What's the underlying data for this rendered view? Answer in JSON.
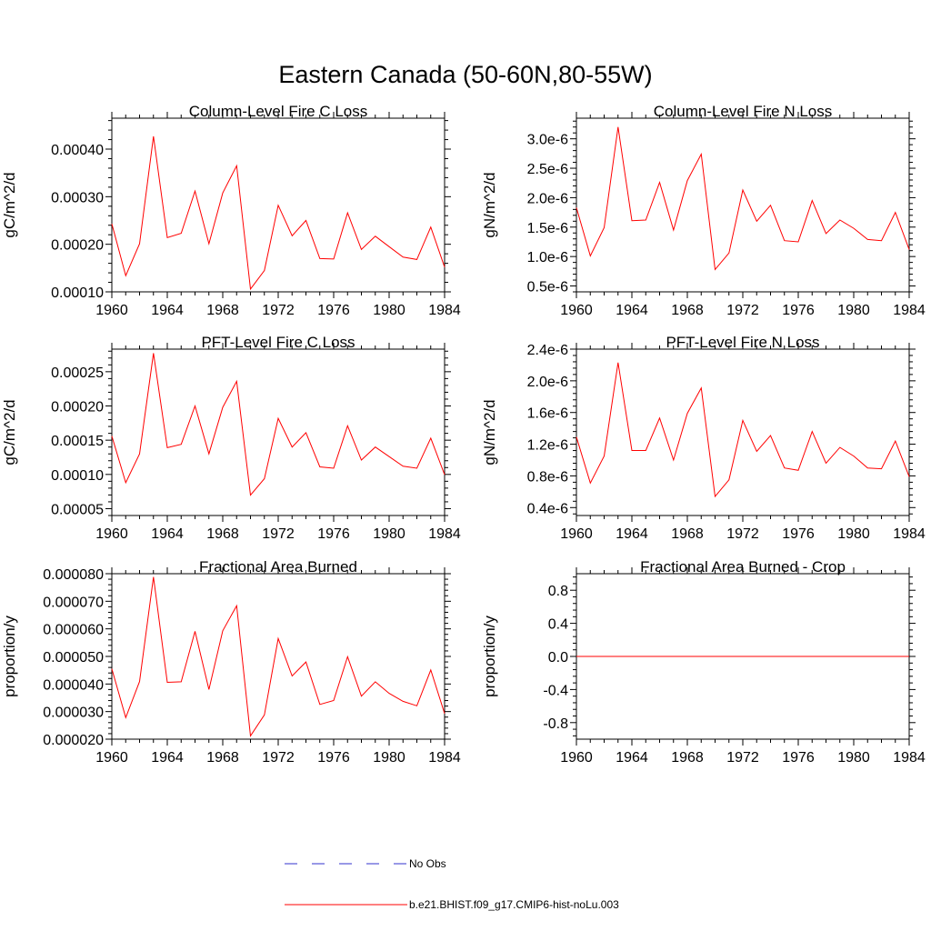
{
  "figure": {
    "title": "Eastern Canada (50-60N,80-55W)"
  },
  "legend": {
    "entries": [
      {
        "label": "No Obs",
        "color": "#3333cc",
        "style": "dashed"
      },
      {
        "label": "b.e21.BHIST.f09_g17.CMIP6-hist-noLu.003",
        "color": "#ff0000",
        "style": "solid"
      }
    ]
  },
  "chart_data": [
    {
      "type": "line",
      "title": "Column-Level Fire C Loss",
      "ylabel": "gC/m^2/d",
      "xlim": [
        1960,
        1984
      ],
      "ylim": [
        0.0001,
        0.000465
      ],
      "xticks": [
        "1960",
        "1964",
        "1968",
        "1972",
        "1976",
        "1980",
        "1984"
      ],
      "yticks": [
        "0.00010",
        "0.00020",
        "0.00030",
        "0.00040"
      ],
      "ytick_values": [
        0.0001,
        0.0002,
        0.0003,
        0.0004
      ],
      "x": [
        1960,
        1961,
        1962,
        1963,
        1964,
        1965,
        1966,
        1967,
        1968,
        1969,
        1970,
        1971,
        1972,
        1973,
        1974,
        1975,
        1976,
        1977,
        1978,
        1979,
        1980,
        1981,
        1982,
        1983,
        1984
      ],
      "series": [
        {
          "color": "#ff0000",
          "values": [
            0.000243,
            0.000134,
            0.000201,
            0.000427,
            0.000214,
            0.000223,
            0.000312,
            0.000201,
            0.000308,
            0.000365,
            0.000106,
            0.000145,
            0.000282,
            0.000218,
            0.00025,
            0.00017,
            0.000169,
            0.000266,
            0.000189,
            0.000217,
            0.000195,
            0.000173,
            0.000168,
            0.000236,
            0.000152
          ]
        }
      ]
    },
    {
      "type": "line",
      "title": "Column-Level Fire N Loss",
      "ylabel": "gN/m^2/d",
      "xlim": [
        1960,
        1984
      ],
      "ylim": [
        4e-07,
        3.35e-06
      ],
      "xticks": [
        "1960",
        "1964",
        "1968",
        "1972",
        "1976",
        "1980",
        "1984"
      ],
      "yticks": [
        "0.5e-6",
        "1.0e-6",
        "1.5e-6",
        "2.0e-6",
        "2.5e-6",
        "3.0e-6"
      ],
      "ytick_values": [
        5e-07,
        1e-06,
        1.5e-06,
        2e-06,
        2.5e-06,
        3e-06
      ],
      "x": [
        1960,
        1961,
        1962,
        1963,
        1964,
        1965,
        1966,
        1967,
        1968,
        1969,
        1970,
        1971,
        1972,
        1973,
        1974,
        1975,
        1976,
        1977,
        1978,
        1979,
        1980,
        1981,
        1982,
        1983,
        1984
      ],
      "series": [
        {
          "color": "#ff0000",
          "values": [
            1.83e-06,
            1.01e-06,
            1.49e-06,
            3.2e-06,
            1.61e-06,
            1.62e-06,
            2.26e-06,
            1.45e-06,
            2.29e-06,
            2.74e-06,
            7.8e-07,
            1.06e-06,
            2.13e-06,
            1.6e-06,
            1.87e-06,
            1.27e-06,
            1.25e-06,
            1.95e-06,
            1.39e-06,
            1.62e-06,
            1.48e-06,
            1.29e-06,
            1.27e-06,
            1.75e-06,
            1.12e-06
          ]
        }
      ]
    },
    {
      "type": "line",
      "title": "PFT-Level Fire C Loss",
      "ylabel": "gC/m^2/d",
      "xlim": [
        1960,
        1984
      ],
      "ylim": [
        4e-05,
        0.000283
      ],
      "xticks": [
        "1960",
        "1964",
        "1968",
        "1972",
        "1976",
        "1980",
        "1984"
      ],
      "yticks": [
        "0.00005",
        "0.00010",
        "0.00015",
        "0.00020",
        "0.00025"
      ],
      "ytick_values": [
        5e-05,
        0.0001,
        0.00015,
        0.0002,
        0.00025
      ],
      "x": [
        1960,
        1961,
        1962,
        1963,
        1964,
        1965,
        1966,
        1967,
        1968,
        1969,
        1970,
        1971,
        1972,
        1973,
        1974,
        1975,
        1976,
        1977,
        1978,
        1979,
        1980,
        1981,
        1982,
        1983,
        1984
      ],
      "series": [
        {
          "color": "#ff0000",
          "values": [
            0.000156,
            8.79e-05,
            0.00013,
            0.000277,
            0.000139,
            0.000144,
            0.0002,
            0.00013,
            0.000198,
            0.000236,
            6.97e-05,
            9.38e-05,
            0.000182,
            0.00014,
            0.000161,
            0.000111,
            0.000109,
            0.000171,
            0.000121,
            0.00014,
            0.000126,
            0.000112,
            0.000109,
            0.000153,
            9.96e-05
          ]
        }
      ]
    },
    {
      "type": "line",
      "title": "PFT-Level Fire N Loss",
      "ylabel": "gN/m^2/d",
      "xlim": [
        1960,
        1984
      ],
      "ylim": [
        3e-07,
        2.4e-06
      ],
      "xticks": [
        "1960",
        "1964",
        "1968",
        "1972",
        "1976",
        "1980",
        "1984"
      ],
      "yticks": [
        "0.4e-6",
        "0.8e-6",
        "1.2e-6",
        "1.6e-6",
        "2.0e-6",
        "2.4e-6"
      ],
      "ytick_values": [
        4e-07,
        8e-07,
        1.2e-06,
        1.6e-06,
        2e-06,
        2.4e-06
      ],
      "x": [
        1960,
        1961,
        1962,
        1963,
        1964,
        1965,
        1966,
        1967,
        1968,
        1969,
        1970,
        1971,
        1972,
        1973,
        1974,
        1975,
        1976,
        1977,
        1978,
        1979,
        1980,
        1981,
        1982,
        1983,
        1984
      ],
      "series": [
        {
          "color": "#ff0000",
          "values": [
            1.29e-06,
            7.1e-07,
            1.05e-06,
            2.23e-06,
            1.12e-06,
            1.12e-06,
            1.53e-06,
            1e-06,
            1.59e-06,
            1.91e-06,
            5.4e-07,
            7.5e-07,
            1.5e-06,
            1.11e-06,
            1.31e-06,
            9e-07,
            8.7e-07,
            1.36e-06,
            9.6e-07,
            1.16e-06,
            1.05e-06,
            9e-07,
            8.9e-07,
            1.24e-06,
            7.9e-07
          ]
        }
      ]
    },
    {
      "type": "line",
      "title": "Fractional Area Burned",
      "ylabel": "proportion/y",
      "xlim": [
        1960,
        1984
      ],
      "ylim": [
        2e-05,
        8e-05
      ],
      "xticks": [
        "1960",
        "1964",
        "1968",
        "1972",
        "1976",
        "1980",
        "1984"
      ],
      "yticks": [
        "0.000020",
        "0.000030",
        "0.000040",
        "0.000050",
        "0.000060",
        "0.000070",
        "0.000080"
      ],
      "ytick_values": [
        2e-05,
        3e-05,
        4e-05,
        5e-05,
        6e-05,
        7e-05,
        8e-05
      ],
      "x": [
        1960,
        1961,
        1962,
        1963,
        1964,
        1965,
        1966,
        1967,
        1968,
        1969,
        1970,
        1971,
        1972,
        1973,
        1974,
        1975,
        1976,
        1977,
        1978,
        1979,
        1980,
        1981,
        1982,
        1983,
        1984
      ],
      "series": [
        {
          "color": "#ff0000",
          "values": [
            4.55e-05,
            2.78e-05,
            4.09e-05,
            7.88e-05,
            4.06e-05,
            4.08e-05,
            5.91e-05,
            3.8e-05,
            5.93e-05,
            6.84e-05,
            2.12e-05,
            2.88e-05,
            5.65e-05,
            4.29e-05,
            4.8e-05,
            3.26e-05,
            3.4e-05,
            4.99e-05,
            3.56e-05,
            4.08e-05,
            3.66e-05,
            3.37e-05,
            3.21e-05,
            4.51e-05,
            2.93e-05
          ]
        }
      ]
    },
    {
      "type": "line",
      "title": "Fractional Area Burned - Crop",
      "ylabel": "proportion/y",
      "xlim": [
        1960,
        1984
      ],
      "ylim": [
        -1.0,
        1.0
      ],
      "xticks": [
        "1960",
        "1964",
        "1968",
        "1972",
        "1976",
        "1980",
        "1984"
      ],
      "yticks": [
        "-0.8",
        "-0.4",
        "0.0",
        "0.4",
        "0.8"
      ],
      "ytick_values": [
        -0.8,
        -0.4,
        0.0,
        0.4,
        0.8
      ],
      "x": [
        1960,
        1961,
        1962,
        1963,
        1964,
        1965,
        1966,
        1967,
        1968,
        1969,
        1970,
        1971,
        1972,
        1973,
        1974,
        1975,
        1976,
        1977,
        1978,
        1979,
        1980,
        1981,
        1982,
        1983,
        1984
      ],
      "series": [
        {
          "color": "#ff0000",
          "values": [
            0,
            0,
            0,
            0,
            0,
            0,
            0,
            0,
            0,
            0,
            0,
            0,
            0,
            0,
            0,
            0,
            0,
            0,
            0,
            0,
            0,
            0,
            0,
            0,
            0
          ]
        }
      ]
    }
  ]
}
